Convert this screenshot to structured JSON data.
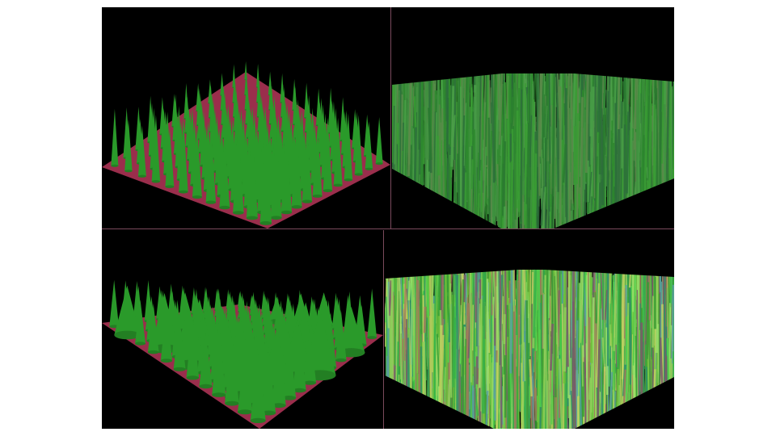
{
  "colors": {
    "background": "#000000",
    "ground": "#9a2e4c",
    "cone_green": "#2a9a2a",
    "divider": "#7a4a5c"
  },
  "panels": [
    {
      "id": "top-left",
      "content": "cone-grid",
      "ground_visible": true
    },
    {
      "id": "top-right",
      "content": "dense-grass",
      "ground_visible": false
    },
    {
      "id": "bottom-left",
      "content": "cone-grid-wide",
      "ground_visible": true
    },
    {
      "id": "bottom-right",
      "content": "colored-grass",
      "ground_visible": false
    }
  ]
}
